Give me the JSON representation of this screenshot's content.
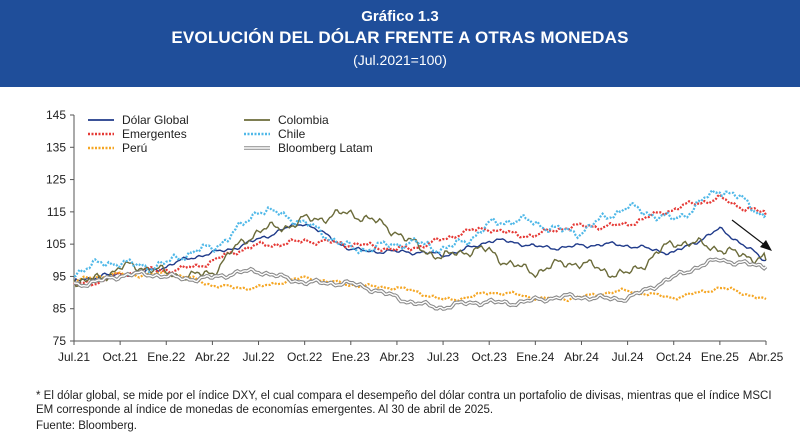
{
  "header": {
    "label": "Gráfico 1.3",
    "title": "EVOLUCIÓN DEL DÓLAR FRENTE A OTRAS MONEDAS",
    "subtitle": "(Jul.2021=100)",
    "background": "#1f4e9a"
  },
  "footnote": "* El dólar global, se mide por el índice DXY, el cual compara el desempeño del dólar contra un portafolio de divisas, mientras que el índice MSCI EM corresponde al índice de monedas de economías emergentes. Al 30 de abril de 2025.",
  "source": "Fuente: Bloomberg.",
  "chart_data": {
    "type": "line",
    "x": [
      "Jul.21",
      "Oct.21",
      "Ene.22",
      "Abr.22",
      "Jul.22",
      "Oct.22",
      "Ene.23",
      "Abr.23",
      "Jul.23",
      "Oct.23",
      "Ene.24",
      "Abr.24",
      "Jul.24",
      "Oct.24",
      "Ene.25",
      "Abr.25"
    ],
    "x_ticks": [
      "Jul.21",
      "Oct.21",
      "Ene.22",
      "Abr.22",
      "Jul.22",
      "Oct.22",
      "Ene.23",
      "Abr.23",
      "Jul.23",
      "Oct.23",
      "Ene.24",
      "Abr.24",
      "Jul.24",
      "Oct.24",
      "Ene.25",
      "Abr.25"
    ],
    "y_ticks": [
      75,
      85,
      95,
      105,
      115,
      125,
      135,
      145
    ],
    "ylim": [
      75,
      145
    ],
    "grid": false,
    "legend_position": "top-left",
    "annotation": "arrow pointing down to the latest values (Abr.25)",
    "series": [
      {
        "name": "Dólar Global",
        "color": "#1f3a8a",
        "style": "solid",
        "values": [
          93,
          96,
          98,
          102,
          107,
          111,
          104,
          102,
          102,
          106,
          104,
          105,
          104,
          103,
          109,
          100
        ]
      },
      {
        "name": "Emergentes",
        "color": "#e53935",
        "style": "dotted",
        "values": [
          93,
          95,
          97,
          100,
          104,
          107,
          104,
          104,
          106,
          110,
          108,
          110,
          112,
          115,
          120,
          114
        ]
      },
      {
        "name": "Perú",
        "color": "#f5a623",
        "style": "dotted",
        "values": [
          93,
          96,
          96,
          92,
          92,
          94,
          93,
          91,
          88,
          90,
          88,
          89,
          90,
          89,
          91,
          88
        ]
      },
      {
        "name": "Colombia",
        "color": "#6b6b3a",
        "style": "solid",
        "values": [
          94,
          97,
          96,
          97,
          108,
          114,
          113,
          110,
          100,
          103,
          97,
          98,
          97,
          104,
          105,
          100
        ]
      },
      {
        "name": "Chile",
        "color": "#4fb8e8",
        "style": "dotted",
        "values": [
          95,
          100,
          99,
          103,
          117,
          110,
          105,
          104,
          104,
          111,
          111,
          110,
          115,
          114,
          121,
          114
        ]
      },
      {
        "name": "Bloomberg Latam",
        "color": "#8a8a8a",
        "style": "double",
        "values": [
          93,
          95,
          95,
          95,
          96,
          94,
          92,
          89,
          85,
          87,
          88,
          88,
          89,
          94,
          101,
          98
        ]
      }
    ]
  }
}
